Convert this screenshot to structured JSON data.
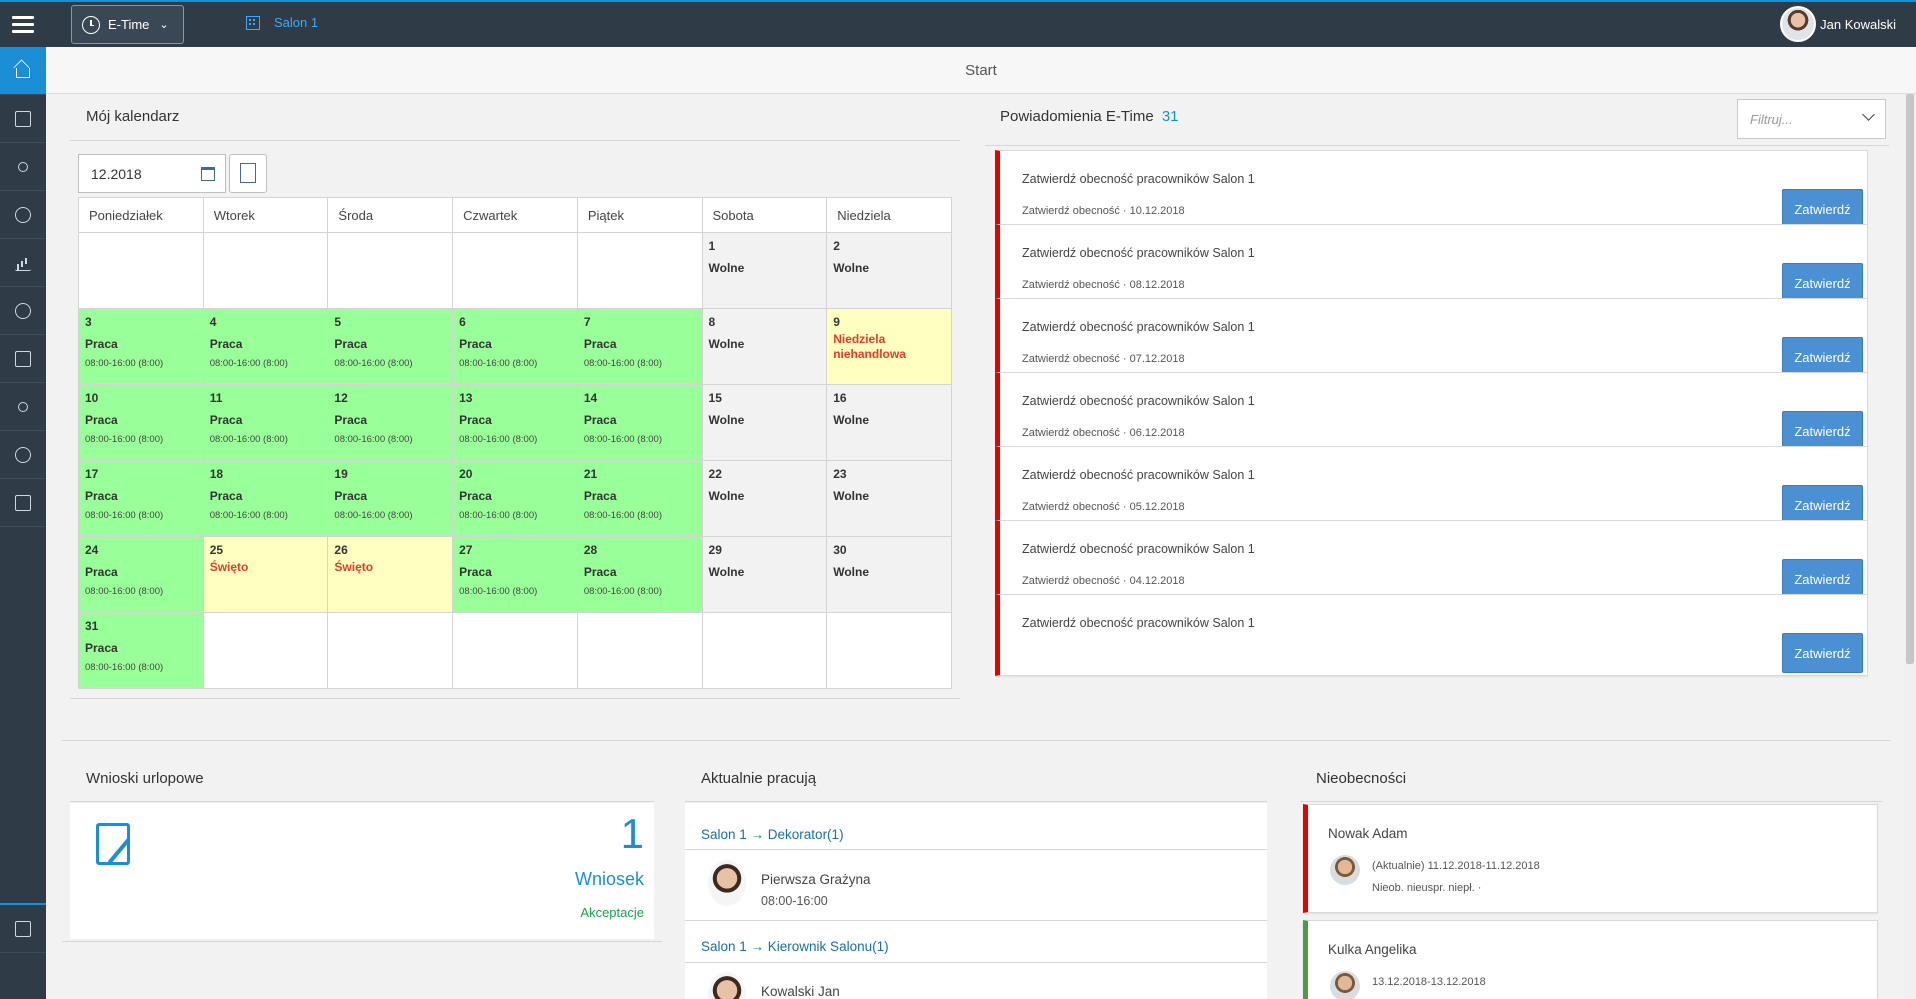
{
  "app": {
    "module": "E-Time",
    "location": "Salon 1",
    "user": "Jan Kowalski",
    "page_title": "Start"
  },
  "sidebar": {
    "items": [
      "home-icon",
      "search-document-icon",
      "users-icon",
      "time-report-icon",
      "chart-icon",
      "search-user-icon",
      "checklist-icon",
      "team-icon",
      "settings-icon",
      "clipboard-icon"
    ],
    "bottom_item": "building-icon"
  },
  "calendar": {
    "title": "Mój kalendarz",
    "month": "12.2018",
    "weekdays": [
      "Poniedziałek",
      "Wtorek",
      "Środa",
      "Czwartek",
      "Piątek",
      "Sobota",
      "Niedziela"
    ],
    "weeks": [
      [
        null,
        null,
        null,
        null,
        null,
        {
          "day": "1",
          "type": "Wolne",
          "kind": "off"
        },
        {
          "day": "2",
          "type": "Wolne",
          "kind": "off"
        }
      ],
      [
        {
          "day": "3",
          "type": "Praca",
          "hours": "08:00-16:00 (8:00)",
          "kind": "work"
        },
        {
          "day": "4",
          "type": "Praca",
          "hours": "08:00-16:00 (8:00)",
          "kind": "work"
        },
        {
          "day": "5",
          "type": "Praca",
          "hours": "08:00-16:00 (8:00)",
          "kind": "work"
        },
        {
          "day": "6",
          "type": "Praca",
          "hours": "08:00-16:00 (8:00)",
          "kind": "work"
        },
        {
          "day": "7",
          "type": "Praca",
          "hours": "08:00-16:00 (8:00)",
          "kind": "work"
        },
        {
          "day": "8",
          "type": "Wolne",
          "kind": "off"
        },
        {
          "day": "9",
          "type": "Niedziela niehandlowa",
          "kind": "holiday"
        }
      ],
      [
        {
          "day": "10",
          "type": "Praca",
          "hours": "08:00-16:00 (8:00)",
          "kind": "work"
        },
        {
          "day": "11",
          "type": "Praca",
          "hours": "08:00-16:00 (8:00)",
          "kind": "work"
        },
        {
          "day": "12",
          "type": "Praca",
          "hours": "08:00-16:00 (8:00)",
          "kind": "work"
        },
        {
          "day": "13",
          "type": "Praca",
          "hours": "08:00-16:00 (8:00)",
          "kind": "work"
        },
        {
          "day": "14",
          "type": "Praca",
          "hours": "08:00-16:00 (8:00)",
          "kind": "work"
        },
        {
          "day": "15",
          "type": "Wolne",
          "kind": "off"
        },
        {
          "day": "16",
          "type": "Wolne",
          "kind": "off"
        }
      ],
      [
        {
          "day": "17",
          "type": "Praca",
          "hours": "08:00-16:00 (8:00)",
          "kind": "work"
        },
        {
          "day": "18",
          "type": "Praca",
          "hours": "08:00-16:00 (8:00)",
          "kind": "work"
        },
        {
          "day": "19",
          "type": "Praca",
          "hours": "08:00-16:00 (8:00)",
          "kind": "work"
        },
        {
          "day": "20",
          "type": "Praca",
          "hours": "08:00-16:00 (8:00)",
          "kind": "work"
        },
        {
          "day": "21",
          "type": "Praca",
          "hours": "08:00-16:00 (8:00)",
          "kind": "work"
        },
        {
          "day": "22",
          "type": "Wolne",
          "kind": "off"
        },
        {
          "day": "23",
          "type": "Wolne",
          "kind": "off"
        }
      ],
      [
        {
          "day": "24",
          "type": "Praca",
          "hours": "08:00-16:00 (8:00)",
          "kind": "work"
        },
        {
          "day": "25",
          "type": "Święto",
          "kind": "holiday"
        },
        {
          "day": "26",
          "type": "Święto",
          "kind": "holiday"
        },
        {
          "day": "27",
          "type": "Praca",
          "hours": "08:00-16:00 (8:00)",
          "kind": "work"
        },
        {
          "day": "28",
          "type": "Praca",
          "hours": "08:00-16:00 (8:00)",
          "kind": "work"
        },
        {
          "day": "29",
          "type": "Wolne",
          "kind": "off"
        },
        {
          "day": "30",
          "type": "Wolne",
          "kind": "off"
        }
      ],
      [
        {
          "day": "31",
          "type": "Praca",
          "hours": "08:00-16:00 (8:00)",
          "kind": "work"
        },
        null,
        null,
        null,
        null,
        null,
        null
      ]
    ]
  },
  "notifications": {
    "title": "Powiadomienia E-Time",
    "count": "31",
    "filter_placeholder": "Filtruj...",
    "button_label": "Zatwierdź",
    "items": [
      {
        "title": "Zatwierdź obecność pracowników Salon 1",
        "subtitle": "Zatwierdź obecność · 10.12.2018"
      },
      {
        "title": "Zatwierdź obecność pracowników Salon 1",
        "subtitle": "Zatwierdź obecność · 08.12.2018"
      },
      {
        "title": "Zatwierdź obecność pracowników Salon 1",
        "subtitle": "Zatwierdź obecność · 07.12.2018"
      },
      {
        "title": "Zatwierdź obecność pracowników Salon 1",
        "subtitle": "Zatwierdź obecność · 06.12.2018"
      },
      {
        "title": "Zatwierdź obecność pracowników Salon 1",
        "subtitle": "Zatwierdź obecność · 05.12.2018"
      },
      {
        "title": "Zatwierdź obecność pracowników Salon 1",
        "subtitle": "Zatwierdź obecność · 04.12.2018"
      },
      {
        "title": "Zatwierdź obecność pracowników Salon 1",
        "subtitle": ""
      }
    ]
  },
  "leave_requests": {
    "title": "Wnioski urlopowe",
    "count": "1",
    "label": "Wniosek",
    "link": "Akceptacje"
  },
  "working_now": {
    "title": "Aktualnie pracują",
    "groups": [
      {
        "title": "Salon 1 → Dekorator(1)",
        "employee": "Pierwsza Grażyna",
        "hours": "08:00-16:00"
      },
      {
        "title": "Salon 1 → Kierownik Salonu(1)",
        "employee": "Kowalski Jan",
        "hours": ""
      }
    ]
  },
  "absences": {
    "title": "Nieobecności",
    "items": [
      {
        "name": "Nowak Adam",
        "dates": "(Aktualnie) 11.12.2018-11.12.2018",
        "type": "Nieob. nieuspr. niepł.  ·",
        "color": "#e60000"
      },
      {
        "name": "Kulka Angelika",
        "dates": "13.12.2018-13.12.2018",
        "type": "",
        "color": "#43a047"
      }
    ]
  }
}
